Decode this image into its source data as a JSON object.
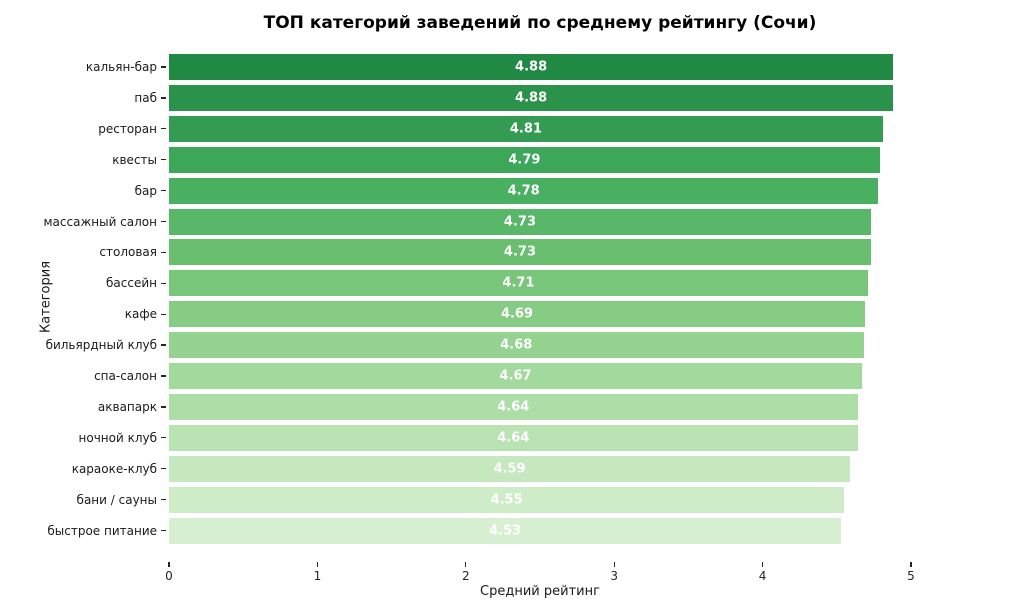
{
  "chart_data": {
    "type": "bar",
    "orientation": "horizontal",
    "title": "ТОП категорий заведений по среднему рейтингу (Сочи)",
    "xlabel": "Средний рейтинг",
    "ylabel": "Категория",
    "xlim": [
      0,
      5
    ],
    "xticks": [
      0,
      1,
      2,
      3,
      4,
      5
    ],
    "xtick_labels": [
      "0",
      "1",
      "2",
      "3",
      "4",
      "5"
    ],
    "grid": false,
    "legend": "none",
    "background": "#ffffff",
    "value_label_color": "#ffffff",
    "categories": [
      "кальян-бар",
      "паб",
      "ресторан",
      "квесты",
      "бар",
      "массажный салон",
      "столовая",
      "бассейн",
      "кафе",
      "бильярдный клуб",
      "спа-салон",
      "аквапарк",
      "ночной клуб",
      "караоке-клуб",
      "бани / сауны",
      "быстрое питание"
    ],
    "values": [
      4.88,
      4.88,
      4.81,
      4.79,
      4.78,
      4.73,
      4.73,
      4.71,
      4.69,
      4.68,
      4.67,
      4.64,
      4.64,
      4.59,
      4.55,
      4.53
    ],
    "value_labels": [
      "4.88",
      "4.88",
      "4.81",
      "4.79",
      "4.78",
      "4.73",
      "4.73",
      "4.71",
      "4.69",
      "4.68",
      "4.67",
      "4.64",
      "4.64",
      "4.59",
      "4.55",
      "4.53"
    ],
    "bar_colors": [
      "#208943",
      "#2a924a",
      "#339c52",
      "#3ca659",
      "#49af61",
      "#59b769",
      "#69be70",
      "#78c679",
      "#86cc85",
      "#94d390",
      "#a2d99c",
      "#addea7",
      "#b9e3b2",
      "#c5e8be",
      "#cfecc8",
      "#d8f0d2"
    ]
  }
}
